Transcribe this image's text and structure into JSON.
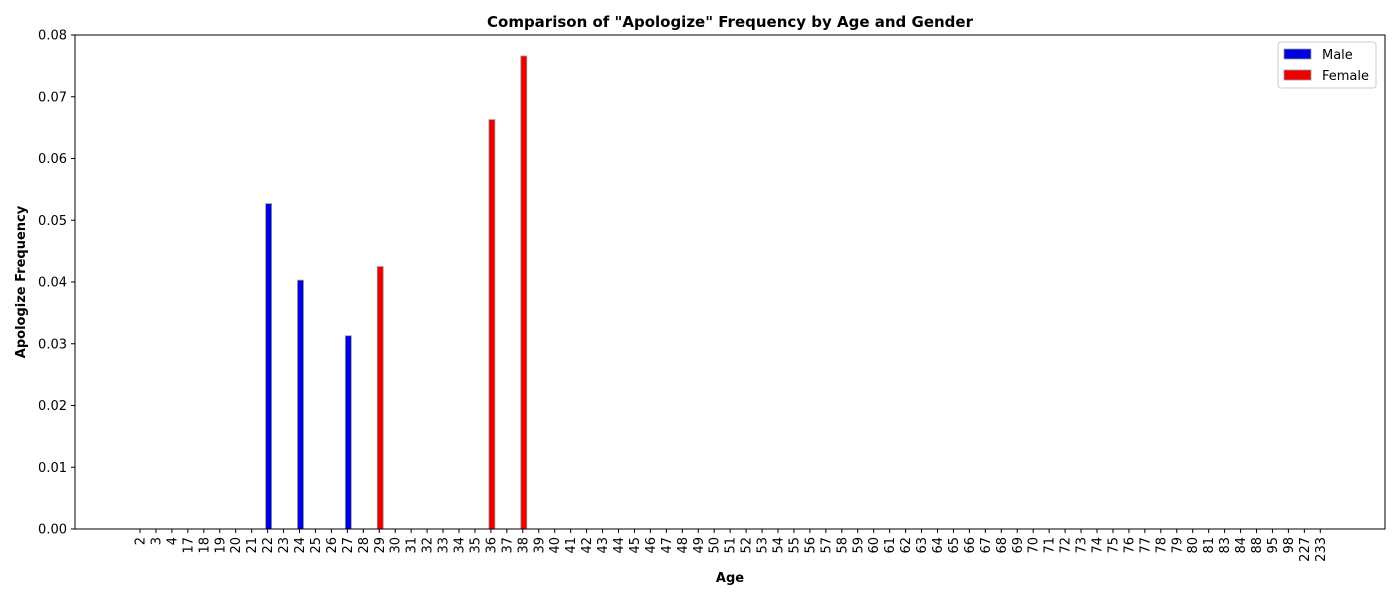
{
  "chart_data": {
    "type": "bar",
    "title": "Comparison of \"Apologize\" Frequency by Age and Gender",
    "xlabel": "Age",
    "ylabel": "Apologize Frequency",
    "ylim": [
      0,
      0.08
    ],
    "yticks": [
      "0.00",
      "0.01",
      "0.02",
      "0.03",
      "0.04",
      "0.05",
      "0.06",
      "0.07",
      "0.08"
    ],
    "grid": false,
    "legend": "top-right",
    "categories": [
      "2",
      "3",
      "4",
      "17",
      "18",
      "19",
      "20",
      "21",
      "22",
      "23",
      "24",
      "25",
      "26",
      "27",
      "28",
      "29",
      "30",
      "31",
      "32",
      "33",
      "34",
      "35",
      "36",
      "37",
      "38",
      "39",
      "40",
      "41",
      "42",
      "43",
      "44",
      "45",
      "46",
      "47",
      "48",
      "49",
      "50",
      "51",
      "52",
      "53",
      "54",
      "55",
      "56",
      "57",
      "58",
      "59",
      "60",
      "61",
      "62",
      "63",
      "64",
      "65",
      "66",
      "67",
      "68",
      "69",
      "70",
      "71",
      "72",
      "73",
      "74",
      "75",
      "76",
      "77",
      "78",
      "79",
      "80",
      "81",
      "83",
      "84",
      "88",
      "95",
      "98",
      "227",
      "233"
    ],
    "series": [
      {
        "name": "Male",
        "color": "#0000dd",
        "values": {
          "22": 0.0527,
          "24": 0.0403,
          "27": 0.0313
        }
      },
      {
        "name": "Female",
        "color": "#ee0000",
        "values": {
          "29": 0.0425,
          "36": 0.0663,
          "38": 0.0766
        }
      }
    ]
  }
}
